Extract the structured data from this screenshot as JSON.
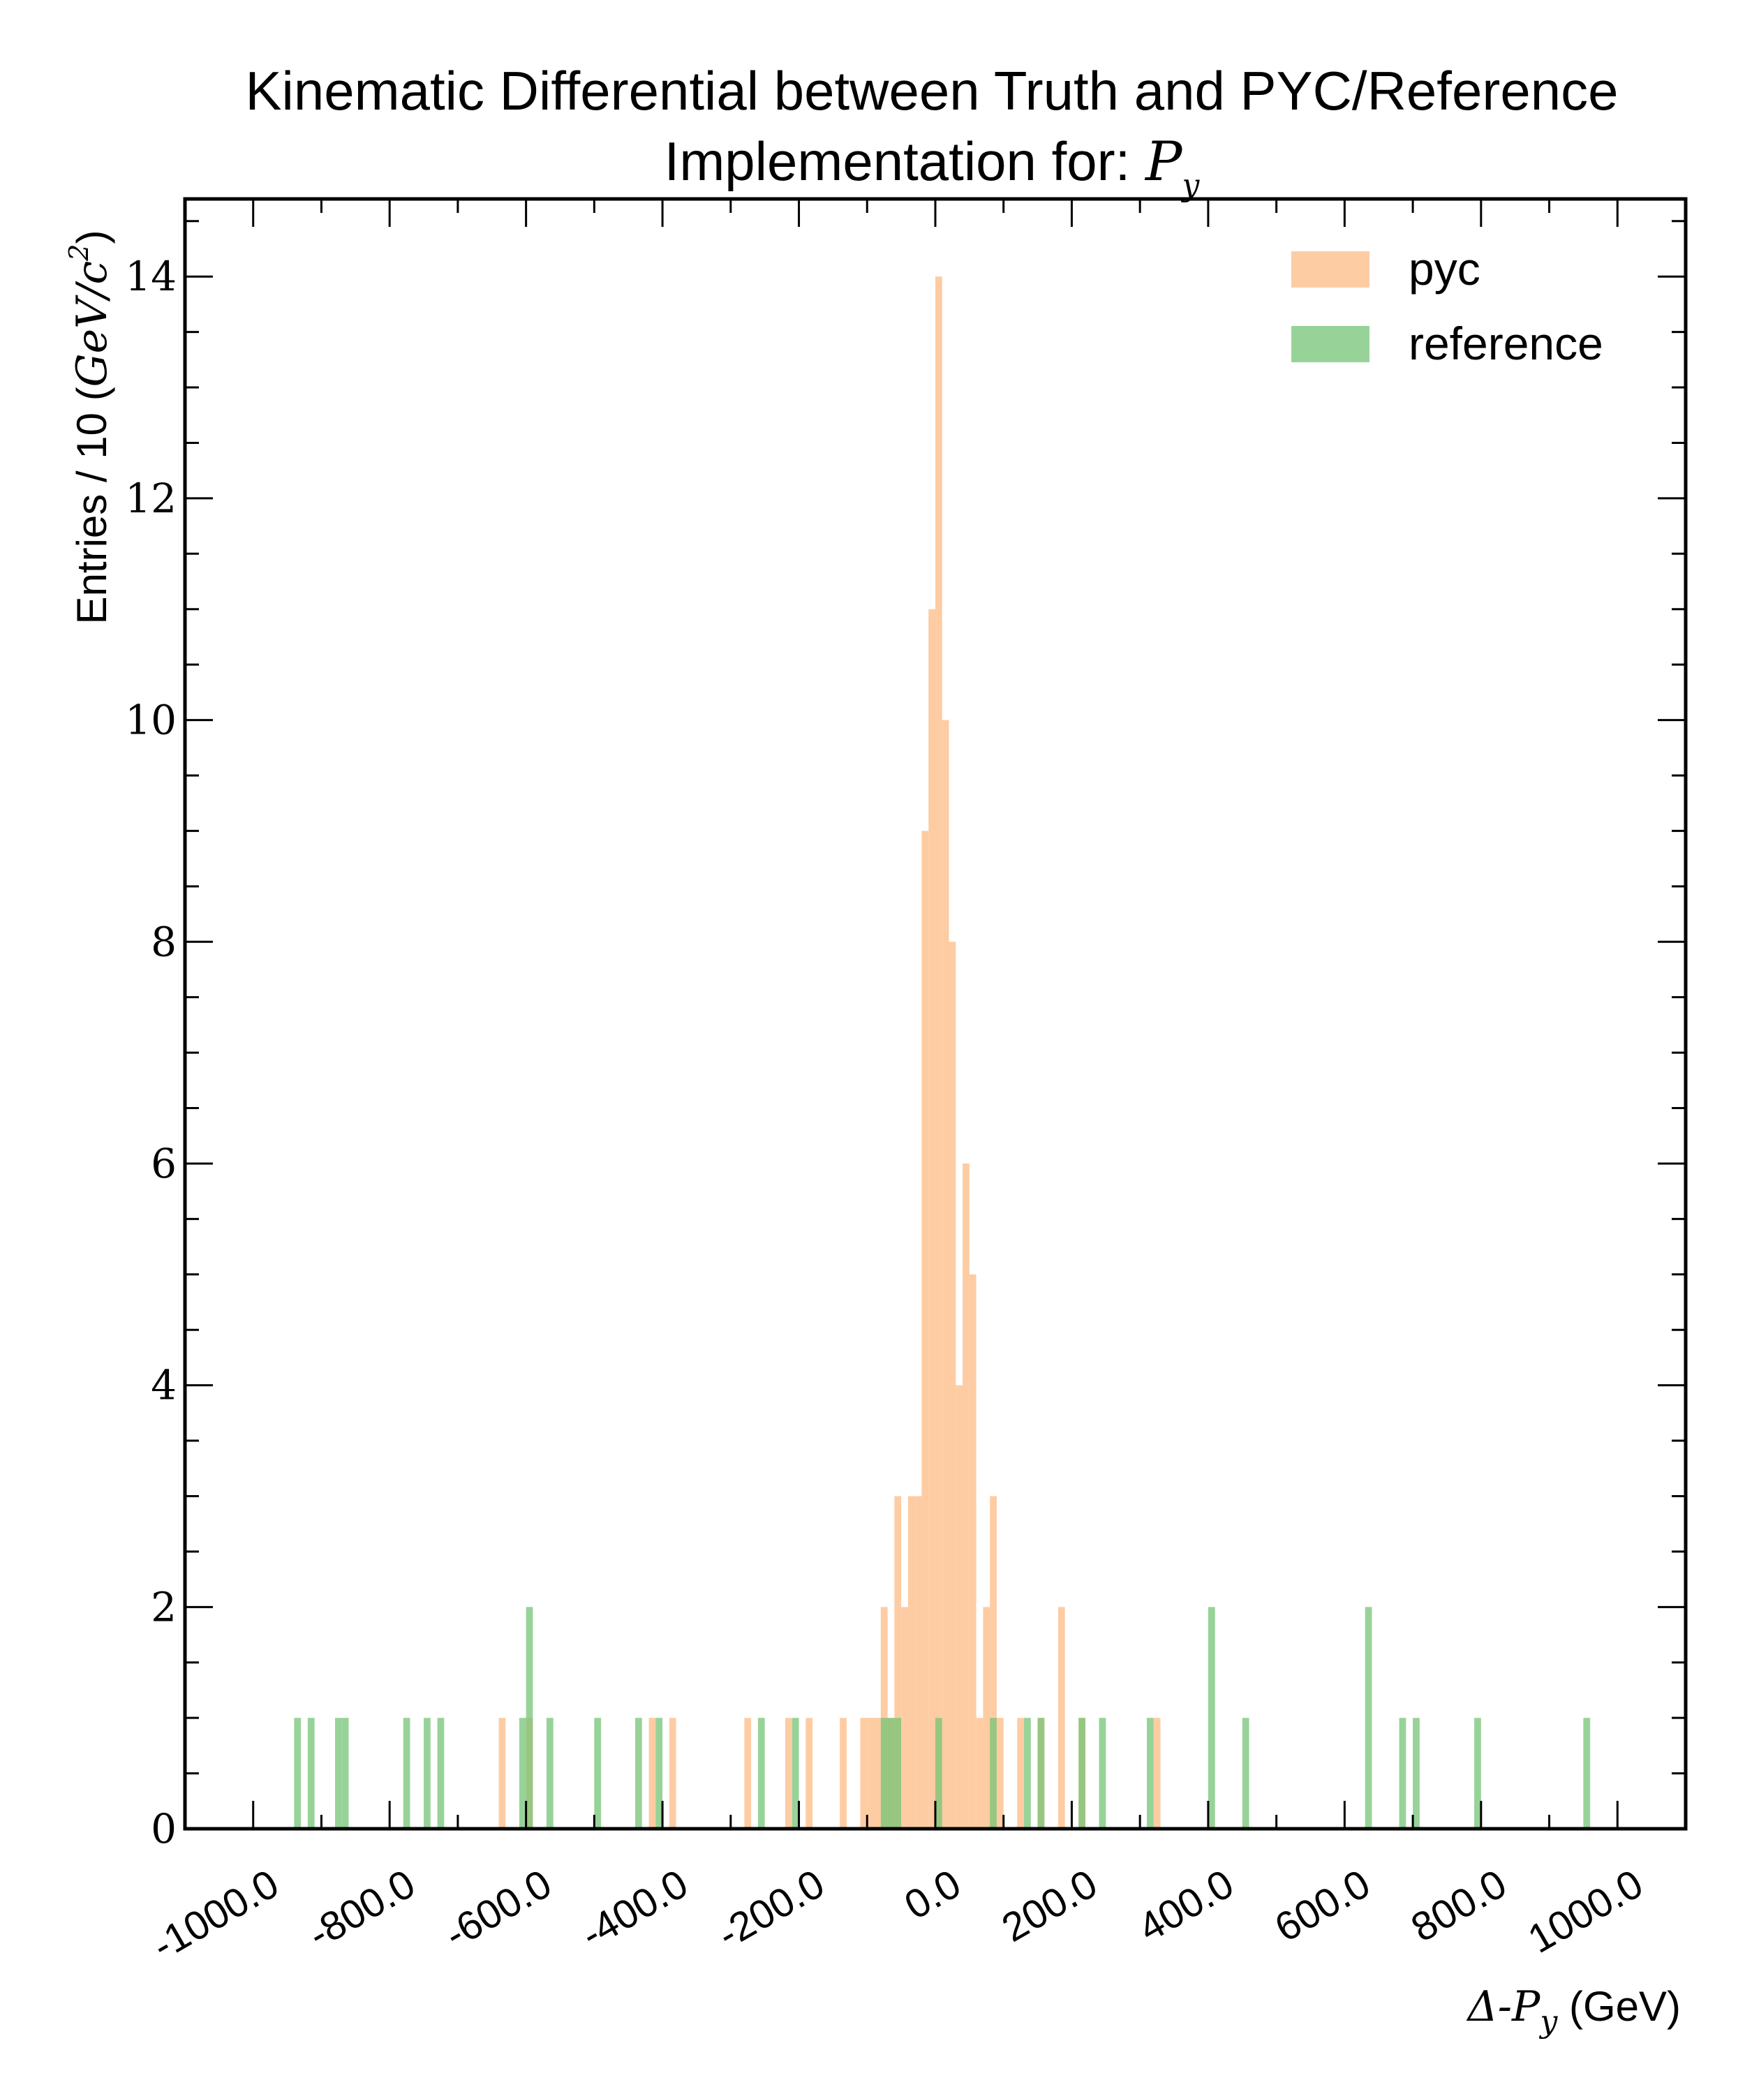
{
  "chart_data": {
    "type": "bar",
    "title_line1": "Kinematic Differential between Truth and PYC/Reference",
    "title_line2_text": "Implementation for: ",
    "title_line2_math": "P",
    "title_line2_sub": "y",
    "ylabel_text": "Entries / 10 (",
    "ylabel_math": "GeV/c",
    "ylabel_sup": "2",
    "ylabel_close": ")",
    "xlabel_math": "Δ-P",
    "xlabel_sub": "y",
    "xlabel_unit": " (GeV)",
    "xlim": [
      -1100,
      1100
    ],
    "ylim": [
      0,
      14.7
    ],
    "bin_width": 10,
    "xticks": [
      -1000,
      -800,
      -600,
      -400,
      -200,
      0,
      200,
      400,
      600,
      800,
      1000
    ],
    "xtick_labels": [
      "-1000.0",
      "-800.0",
      "-600.0",
      "-400.0",
      "-200.0",
      "0.0",
      "200.0",
      "400.0",
      "600.0",
      "800.0",
      "1000.0"
    ],
    "yticks": [
      0,
      2,
      4,
      6,
      8,
      10,
      12,
      14
    ],
    "ytick_labels": [
      "0",
      "2",
      "4",
      "6",
      "8",
      "10",
      "12",
      "14"
    ],
    "legend_position": "top-right",
    "series": [
      {
        "name": "pyc",
        "color": "#fdbb84",
        "bins": [
          {
            "x": -640,
            "y": 1
          },
          {
            "x": -600,
            "y": 1
          },
          {
            "x": -420,
            "y": 1
          },
          {
            "x": -390,
            "y": 1
          },
          {
            "x": -280,
            "y": 1
          },
          {
            "x": -220,
            "y": 1
          },
          {
            "x": -190,
            "y": 1
          },
          {
            "x": -140,
            "y": 1
          },
          {
            "x": -110,
            "y": 1
          },
          {
            "x": -100,
            "y": 1
          },
          {
            "x": -90,
            "y": 1
          },
          {
            "x": -80,
            "y": 2
          },
          {
            "x": -70,
            "y": 1
          },
          {
            "x": -60,
            "y": 3
          },
          {
            "x": -50,
            "y": 2
          },
          {
            "x": -40,
            "y": 3
          },
          {
            "x": -30,
            "y": 3
          },
          {
            "x": -20,
            "y": 9
          },
          {
            "x": -10,
            "y": 11
          },
          {
            "x": 0,
            "y": 14
          },
          {
            "x": 10,
            "y": 10
          },
          {
            "x": 20,
            "y": 8
          },
          {
            "x": 30,
            "y": 4
          },
          {
            "x": 40,
            "y": 6
          },
          {
            "x": 50,
            "y": 5
          },
          {
            "x": 60,
            "y": 1
          },
          {
            "x": 70,
            "y": 2
          },
          {
            "x": 80,
            "y": 3
          },
          {
            "x": 90,
            "y": 1
          },
          {
            "x": 120,
            "y": 1
          },
          {
            "x": 150,
            "y": 1
          },
          {
            "x": 180,
            "y": 2
          },
          {
            "x": 210,
            "y": 1
          },
          {
            "x": 320,
            "y": 1
          }
        ]
      },
      {
        "name": "reference",
        "color": "#74c476",
        "bins": [
          {
            "x": -940,
            "y": 1
          },
          {
            "x": -920,
            "y": 1
          },
          {
            "x": -880,
            "y": 1
          },
          {
            "x": -870,
            "y": 1
          },
          {
            "x": -780,
            "y": 1
          },
          {
            "x": -750,
            "y": 1
          },
          {
            "x": -730,
            "y": 1
          },
          {
            "x": -610,
            "y": 1
          },
          {
            "x": -600,
            "y": 2
          },
          {
            "x": -570,
            "y": 1
          },
          {
            "x": -500,
            "y": 1
          },
          {
            "x": -440,
            "y": 1
          },
          {
            "x": -410,
            "y": 1
          },
          {
            "x": -260,
            "y": 1
          },
          {
            "x": -210,
            "y": 1
          },
          {
            "x": -80,
            "y": 1
          },
          {
            "x": -70,
            "y": 1
          },
          {
            "x": -60,
            "y": 1
          },
          {
            "x": 0,
            "y": 1
          },
          {
            "x": 80,
            "y": 1
          },
          {
            "x": 130,
            "y": 1
          },
          {
            "x": 150,
            "y": 1
          },
          {
            "x": 210,
            "y": 1
          },
          {
            "x": 240,
            "y": 1
          },
          {
            "x": 310,
            "y": 1
          },
          {
            "x": 400,
            "y": 2
          },
          {
            "x": 450,
            "y": 1
          },
          {
            "x": 630,
            "y": 2
          },
          {
            "x": 680,
            "y": 1
          },
          {
            "x": 700,
            "y": 1
          },
          {
            "x": 790,
            "y": 1
          },
          {
            "x": 950,
            "y": 1
          }
        ]
      }
    ]
  }
}
